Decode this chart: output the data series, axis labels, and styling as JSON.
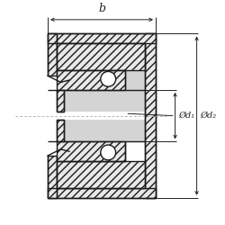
{
  "bg_color": "#ffffff",
  "line_color": "#1a1a1a",
  "fig_bg": "#ffffff",
  "b_label": "b",
  "d1_label": "Ød₁",
  "d2_label": "Ød₂",
  "dim_color": "#222222"
}
